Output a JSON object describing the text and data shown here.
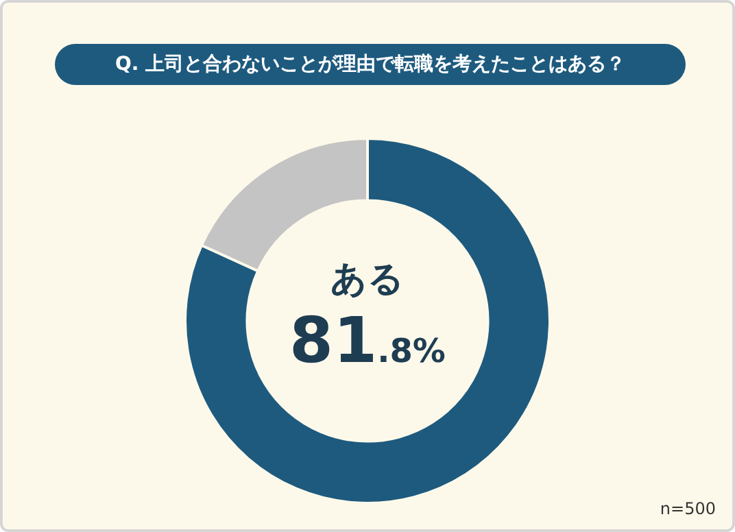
{
  "chart_data": {
    "type": "donut",
    "title": "Q. 上司と合わないことが理由で転職を考えたことはある？",
    "categories": [
      "ある",
      null
    ],
    "values": [
      81.8,
      18.2
    ],
    "colors": [
      "#1e5a7e",
      "#c4c4c4"
    ],
    "value_labels": [
      "81.8%",
      null
    ],
    "legend": false,
    "annotations": [
      "n=500"
    ]
  }
}
